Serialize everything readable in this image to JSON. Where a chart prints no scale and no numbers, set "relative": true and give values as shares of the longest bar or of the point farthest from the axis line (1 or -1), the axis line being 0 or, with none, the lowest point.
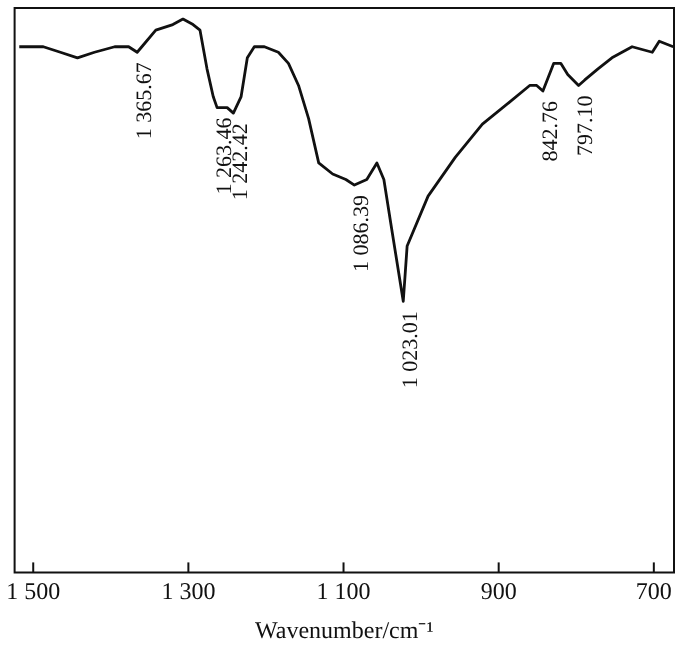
{
  "chart_data": {
    "type": "line",
    "xlabel": "Wavenumber/cm⁻¹",
    "relative": true,
    "color": "#111111",
    "grid": false,
    "legend": false,
    "tick_labels": "x",
    "marker": "none",
    "line_style": "solid",
    "xlim": [
      1524,
      674
    ],
    "xticks": [
      {
        "value": 1500,
        "label": "1 500"
      },
      {
        "value": 1300,
        "label": "1 300"
      },
      {
        "value": 1100,
        "label": "1 100"
      },
      900,
      700
    ],
    "x": [
      1518,
      1487,
      1465,
      1443,
      1421,
      1395,
      1377,
      1366,
      1360,
      1342,
      1320,
      1307,
      1294,
      1285,
      1276,
      1268,
      1263,
      1250,
      1242,
      1232,
      1224,
      1215,
      1202,
      1184,
      1171,
      1158,
      1145,
      1132,
      1114,
      1097,
      1086,
      1070,
      1057,
      1048,
      1039,
      1023,
      1018,
      991,
      956,
      921,
      886,
      860,
      851,
      843,
      829,
      820,
      811,
      797,
      789,
      772,
      754,
      728,
      702,
      693,
      675
    ],
    "values": [
      0.95,
      0.95,
      0.94,
      0.93,
      0.94,
      0.95,
      0.95,
      0.94,
      0.95,
      0.98,
      0.99,
      1,
      0.99,
      0.98,
      0.91,
      0.86,
      0.84,
      0.84,
      0.83,
      0.86,
      0.93,
      0.95,
      0.95,
      0.94,
      0.92,
      0.88,
      0.82,
      0.74,
      0.72,
      0.71,
      0.7,
      0.71,
      0.74,
      0.71,
      0.63,
      0.49,
      0.59,
      0.68,
      0.75,
      0.81,
      0.85,
      0.88,
      0.88,
      0.87,
      0.92,
      0.92,
      0.9,
      0.88,
      0.89,
      0.91,
      0.93,
      0.95,
      0.94,
      0.96,
      0.95
    ],
    "annotations": [
      {
        "text": "1 365.67",
        "x": 1366,
        "y": 0.94
      },
      {
        "text": "1 263.46",
        "x": 1263,
        "y": 0.84
      },
      {
        "text": "1 242.42",
        "x": 1242,
        "y": 0.83
      },
      {
        "text": "1 086.39",
        "x": 1086,
        "y": 0.7
      },
      {
        "text": "1 023.01",
        "x": 1023,
        "y": 0.49
      },
      {
        "text": "842.76",
        "x": 843,
        "y": 0.87
      },
      {
        "text": "797.10",
        "x": 797,
        "y": 0.88
      }
    ]
  }
}
